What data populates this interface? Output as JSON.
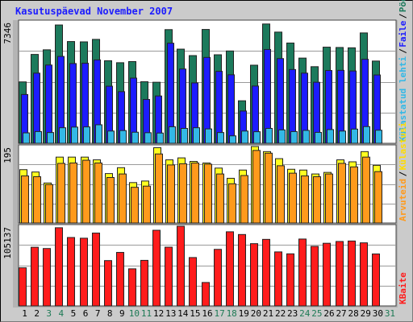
{
  "title": "Kasutuspäevad November 2007",
  "chart_data": {
    "type": "bar",
    "title": "Kasutuspäevad November 2007",
    "x": [
      "1",
      "2",
      "3",
      "4",
      "5",
      "6",
      "7",
      "8",
      "9",
      "10",
      "11",
      "12",
      "13",
      "14",
      "15",
      "16",
      "17",
      "18",
      "19",
      "20",
      "21",
      "22",
      "23",
      "24",
      "25",
      "26",
      "27",
      "28",
      "29",
      "30",
      "31"
    ],
    "x_colors": [
      "#000000",
      "#000000",
      "#1d7a55",
      "#1d7a55",
      "#000000",
      "#000000",
      "#000000",
      "#000000",
      "#000000",
      "#1d7a55",
      "#1d7a55",
      "#000000",
      "#000000",
      "#000000",
      "#000000",
      "#000000",
      "#1d7a55",
      "#1d7a55",
      "#000000",
      "#000000",
      "#000000",
      "#000000",
      "#000000",
      "#1d7a55",
      "#1d7a55",
      "#000000",
      "#000000",
      "#000000",
      "#000000",
      "#000000",
      "#1d7a55"
    ],
    "panels": [
      {
        "max_label": "7346",
        "max": 7346,
        "series": [
          {
            "name": "Pöördumisi",
            "color": "#1c7a5c",
            "label_color": "#1c7a5c",
            "values": [
              3710,
              5370,
              5650,
              7150,
              6150,
              6130,
              6280,
              4990,
              4870,
              4940,
              3720,
              3690,
              6870,
              5690,
              5300,
              6880,
              5350,
              5580,
              2570,
              4720,
              7210,
              6720,
              6060,
              5150,
              4630,
              5810,
              5790,
              5770,
              6670,
              4970,
              0
            ]
          },
          {
            "name": "Faile",
            "color": "#1c1cff",
            "label_color": "#1c1cff",
            "values": [
              2950,
              4240,
              4730,
              5250,
              4820,
              4840,
              5040,
              3450,
              3120,
              3940,
              2650,
              2860,
              6050,
              4490,
              3650,
              5190,
              4350,
              4140,
              1950,
              3460,
              5670,
              5120,
              4460,
              4240,
              3690,
              4400,
              4410,
              4370,
              5080,
              4130,
              0
            ]
          },
          {
            "name": "Külastatud lehti",
            "color": "#33b8e6",
            "label_color": "#33b8e6",
            "values": [
              630,
              710,
              650,
              940,
              980,
              990,
              1120,
              740,
              770,
              670,
              640,
              620,
              1000,
              900,
              940,
              870,
              650,
              450,
              740,
              700,
              900,
              810,
              710,
              780,
              660,
              830,
              740,
              860,
              1010,
              790,
              0
            ]
          }
        ]
      },
      {
        "max_label": "195",
        "max": 195,
        "series": [
          {
            "name": "Külastusi",
            "color": "#ffff20",
            "label_color": "#ffdd00",
            "values": [
              136,
              130,
              102,
              168,
              168,
              168,
              161,
              126,
              141,
              103,
              107,
              192,
              161,
              166,
              157,
              153,
              140,
              114,
              135,
              195,
              182,
              164,
              137,
              135,
              125,
              129,
              161,
              156,
              182,
              147,
              0
            ]
          },
          {
            "name": "Arvuteid",
            "color": "#ff9a1c",
            "label_color": "#ff9a1c",
            "values": [
              120,
              118,
              98,
              152,
              153,
              160,
              153,
              116,
              125,
              91,
              94,
              176,
              148,
              151,
              153,
              150,
              125,
              100,
              121,
              185,
              178,
              146,
              127,
              120,
              118,
              125,
              152,
              143,
              168,
              131,
              0
            ]
          }
        ]
      },
      {
        "max_label": "105137",
        "max": 105137,
        "series": [
          {
            "name": "KBaite",
            "color": "#ff1c1c",
            "label_color": "#ff1c1c",
            "values": [
              50270,
              77400,
              75710,
              103130,
              90240,
              89300,
              96100,
              59780,
              70580,
              48950,
              60090,
              99790,
              77500,
              105130,
              63800,
              30890,
              74600,
              97780,
              94180,
              82130,
              87780,
              71240,
              68700,
              88210,
              78530,
              82630,
              84990,
              85600,
              83210,
              68550,
              0
            ]
          }
        ]
      }
    ]
  }
}
